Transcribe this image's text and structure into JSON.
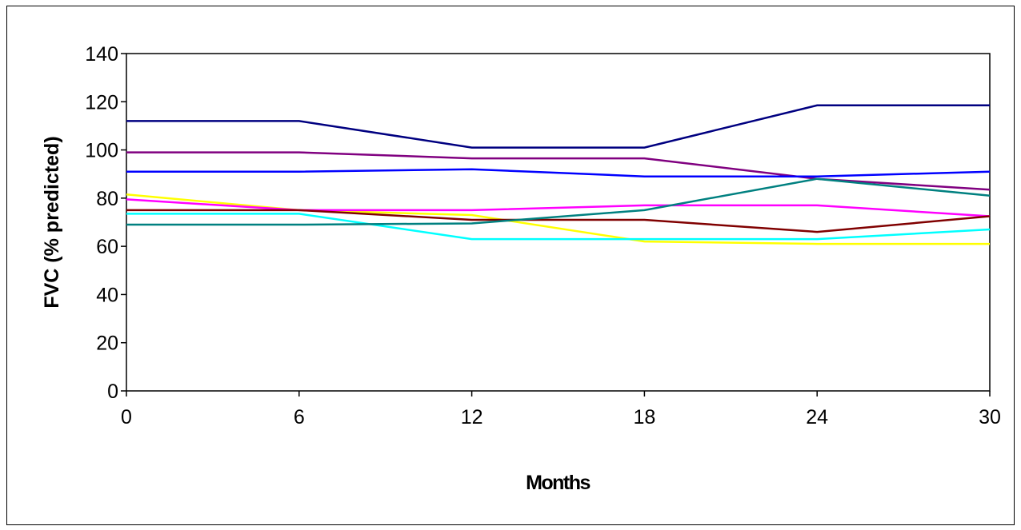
{
  "chart_data": {
    "type": "line",
    "title": "",
    "xlabel": "Months",
    "ylabel": "FVC (% predicted)",
    "x": [
      0,
      6,
      12,
      18,
      24,
      30
    ],
    "x_tick_labels": [
      "0",
      "6",
      "12",
      "18",
      "24",
      "30"
    ],
    "y_tick_labels": [
      "0",
      "20",
      "40",
      "60",
      "80",
      "100",
      "120",
      "140"
    ],
    "y_ticks": [
      0,
      20,
      40,
      60,
      80,
      100,
      120,
      140
    ],
    "xlim": [
      0,
      30
    ],
    "ylim": [
      0,
      140
    ],
    "grid": false,
    "legend": "none",
    "series": [
      {
        "color": "#000080",
        "values": [
          112,
          112,
          101,
          101,
          118.5,
          118.5
        ]
      },
      {
        "color": "#800080",
        "values": [
          99,
          99,
          96.5,
          96.5,
          88,
          83.5
        ]
      },
      {
        "color": "#0000FF",
        "values": [
          91,
          91,
          92,
          89,
          89,
          91
        ]
      },
      {
        "color": "#FFFF00",
        "values": [
          81.5,
          75,
          73,
          62,
          61,
          61
        ]
      },
      {
        "color": "#FF00FF",
        "values": [
          79.5,
          75,
          75,
          77,
          77,
          72.5
        ]
      },
      {
        "color": "#800000",
        "values": [
          75,
          75,
          71,
          71,
          66,
          72.5
        ]
      },
      {
        "color": "#00FFFF",
        "values": [
          73.5,
          73.5,
          63,
          63,
          63,
          67
        ]
      },
      {
        "color": "#008080",
        "values": [
          69,
          69,
          69.5,
          75,
          88,
          81
        ]
      }
    ]
  }
}
